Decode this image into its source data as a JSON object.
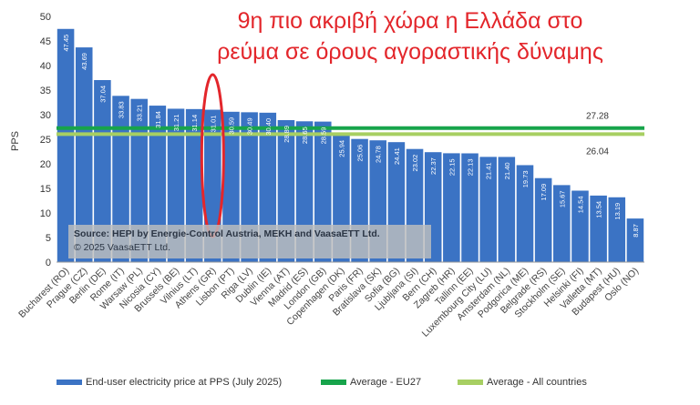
{
  "headline": {
    "line1": "9η πιο ακριβή χώρα η Ελλάδα στο",
    "line2": "ρεύμα σε όρους αγοραστικής δύναμης"
  },
  "source_note": {
    "source": "Source: HEPI by Energie-Control Austria, MEKH and VaasaETT Ltd.",
    "copyright": "© 2025 VaasaETT Ltd."
  },
  "colors": {
    "bar": "#3b73c4",
    "avg_eu27": "#17a44b",
    "avg_all": "#a7cf62",
    "highlight": "#e3262b"
  },
  "chart_data": {
    "type": "bar",
    "ylabel": "PPS",
    "ylim": [
      0,
      50
    ],
    "yticks": [
      0,
      5,
      10,
      15,
      20,
      25,
      30,
      35,
      40,
      45,
      50
    ],
    "categories": [
      "Bucharest (RO)",
      "Prague (CZ)",
      "Berlin (DE)",
      "Rome (IT)",
      "Warsaw (PL)",
      "Nicosia (CY)",
      "Brussels (BE)",
      "Vilnius (LT)",
      "Athens (GR)",
      "Lisbon (PT)",
      "Riga (LV)",
      "Dublin (IE)",
      "Vienna (AT)",
      "Madrid (ES)",
      "London (GB)",
      "Copenhagen (DK)",
      "Paris (FR)",
      "Bratislava (SK)",
      "Sofia (BG)",
      "Ljubljana (SI)",
      "Bern (CH)",
      "Zagreb (HR)",
      "Tallinn (EE)",
      "Luxembourg City (LU)",
      "Amsterdam (NL)",
      "Podgorica (ME)",
      "Belgrade (RS)",
      "Stockholm (SE)",
      "Helsinki (FI)",
      "Valletta (MT)",
      "Budapest (HU)",
      "Oslo (NO)"
    ],
    "series": [
      {
        "name": "End-user electricity price at PPS (July 2025)",
        "values": [
          47.45,
          43.69,
          37.04,
          33.83,
          33.21,
          31.84,
          31.21,
          31.14,
          31.01,
          30.59,
          30.49,
          30.4,
          28.89,
          28.65,
          28.59,
          25.94,
          25.06,
          24.78,
          24.41,
          23.02,
          22.37,
          22.15,
          22.13,
          21.41,
          21.4,
          19.73,
          17.09,
          15.67,
          14.54,
          13.54,
          13.19,
          8.87
        ],
        "value_labels": [
          "47.45",
          "43.69",
          "37.04",
          "33.83",
          "33.21",
          "31.84",
          "31.21",
          "31.14",
          "31.01",
          "30.59",
          "30.49",
          "30.40",
          "28.89",
          "28.65",
          "28.59",
          "25.94",
          "25.06",
          "24.78",
          "24.41",
          "23.02",
          "22.37",
          "22.15",
          "22.13",
          "21.41",
          "21.40",
          "19.73",
          "17.09",
          "15.67",
          "14.54",
          "13.54",
          "13.19",
          "8.87"
        ]
      }
    ],
    "reference_lines": [
      {
        "name": "Average - EU27",
        "value": 27.28,
        "label": "27.28"
      },
      {
        "name": "Average - All countries",
        "value": 26.04,
        "label": "26.04"
      }
    ],
    "highlight_category": "Athens (GR)",
    "grid": false,
    "legend_position": "bottom"
  }
}
